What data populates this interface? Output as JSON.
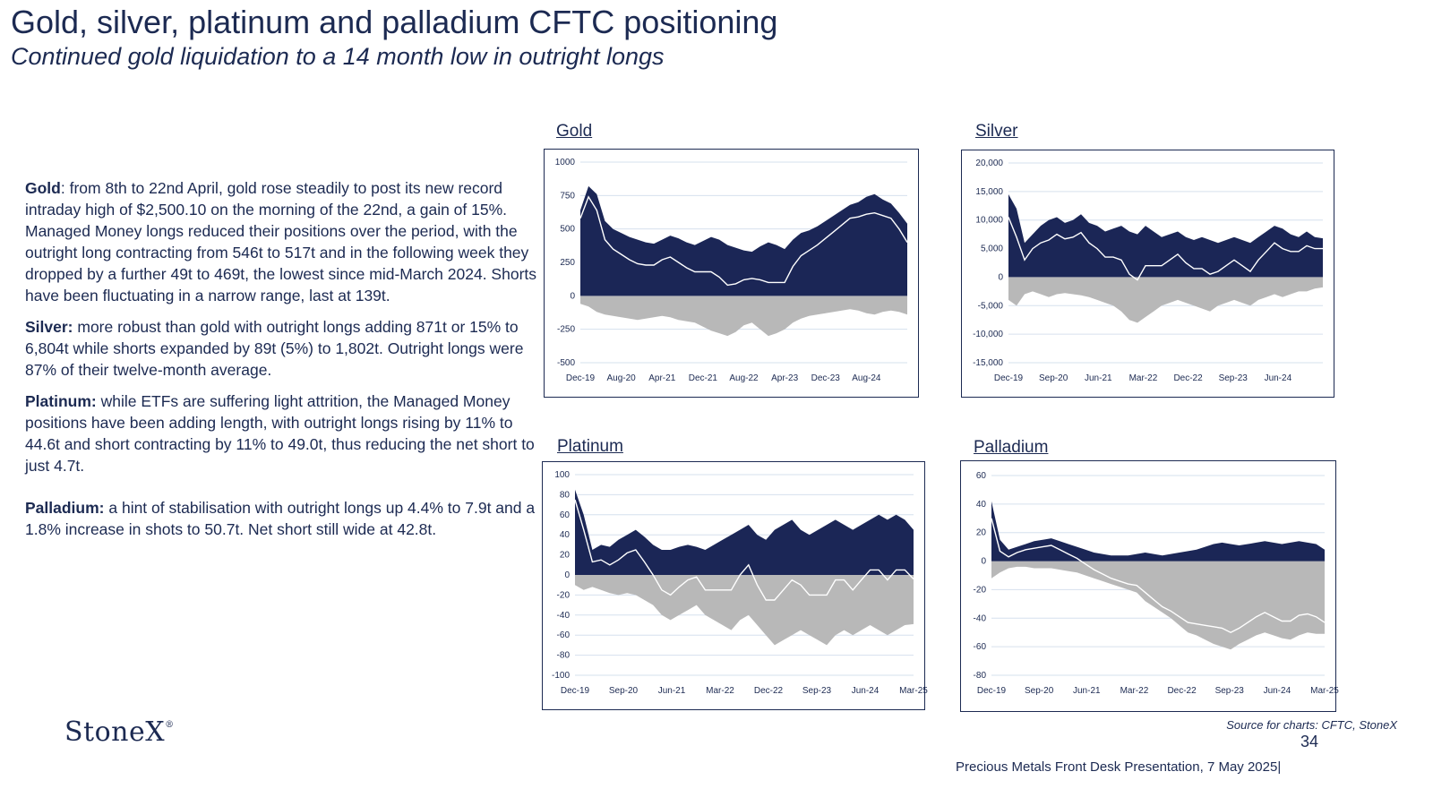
{
  "header": {
    "title": "Gold, silver, platinum and palladium CFTC positioning",
    "subtitle": "Continued gold liquidation to a 14 month low in outright longs"
  },
  "commentary": [
    {
      "label": "Gold",
      "sep": ":",
      "text": "  from 8th to 22nd April, gold rose steadily to post its new record intraday high of $2,500.10 on the morning of the 22nd, a gain of 15%.  Managed Money longs reduced their positions over the period, with the outright long contracting from 546t to 517t and in the following week they dropped by a further 49t to 469t, the lowest since mid-March 2024.  Shorts have been fluctuating in a narrow range, last at 139t."
    },
    {
      "label": "Silver:",
      "sep": "",
      "text": " more robust than gold with outright longs adding 871t or 15% to 6,804t while shorts expanded by 89t (5%) to 1,802t.  Outright longs were 87% of their twelve-month average."
    },
    {
      "label": "Platinum:",
      "sep": "",
      "text": " while ETFs are suffering light attrition, the Managed Money positions have been adding length, with outright longs rising by  11% to 44.6t and short contracting by 11% to 49.0t, thus reducing the net short to just 4.7t."
    },
    {
      "label": "Palladium:",
      "sep": "",
      "text": "  a hint of stabilisation with outright longs up 4.4% to 7.9t and a 1.8% increase in shots to 50.7t.  Net short still wide at 42.8t."
    }
  ],
  "colors": {
    "long": "#1b2656",
    "short": "#b8b8b8",
    "net": "#ffffff",
    "grid": "#d6e0ee",
    "text": "#1c2a52"
  },
  "chart_data": [
    {
      "name": "Gold",
      "type": "area",
      "yticks": [
        "1000",
        "750",
        "500",
        "250",
        "0",
        "-250",
        "-500"
      ],
      "ylim": [
        -500,
        1000
      ],
      "xticks": [
        "Dec-19",
        "Aug-20",
        "Apr-21",
        "Dec-21",
        "Aug-22",
        "Apr-23",
        "Dec-23",
        "Aug-24"
      ],
      "x_start": "Dec-19",
      "x_end": "Apr-25",
      "series": [
        {
          "name": "Long",
          "values": [
            640,
            820,
            760,
            560,
            500,
            470,
            440,
            420,
            400,
            390,
            420,
            450,
            430,
            400,
            380,
            410,
            440,
            420,
            380,
            360,
            340,
            330,
            370,
            400,
            380,
            350,
            420,
            470,
            490,
            520,
            560,
            600,
            640,
            680,
            700,
            740,
            760,
            720,
            690,
            620,
            540
          ]
        },
        {
          "name": "Short",
          "values": [
            -60,
            -80,
            -120,
            -140,
            -150,
            -160,
            -170,
            -180,
            -170,
            -160,
            -150,
            -160,
            -180,
            -190,
            -200,
            -230,
            -260,
            -280,
            -300,
            -270,
            -220,
            -200,
            -250,
            -300,
            -280,
            -250,
            -200,
            -170,
            -150,
            -140,
            -130,
            -120,
            -110,
            -100,
            -110,
            -130,
            -140,
            -120,
            -110,
            -120,
            -140
          ]
        },
        {
          "name": "Net",
          "values": [
            580,
            740,
            640,
            420,
            350,
            310,
            270,
            240,
            230,
            230,
            270,
            290,
            250,
            210,
            180,
            180,
            180,
            140,
            80,
            90,
            120,
            130,
            120,
            100,
            100,
            100,
            220,
            300,
            340,
            380,
            430,
            480,
            530,
            580,
            590,
            610,
            620,
            600,
            580,
            500,
            400
          ]
        }
      ]
    },
    {
      "name": "Silver",
      "type": "area",
      "yticks": [
        "20,000",
        "15,000",
        "10,000",
        "5,000",
        "0",
        "-5,000",
        "-10,000",
        "-15,000"
      ],
      "ylim": [
        -15000,
        20000
      ],
      "xticks": [
        "Dec-19",
        "Sep-20",
        "Jun-21",
        "Mar-22",
        "Dec-22",
        "Sep-23",
        "Jun-24"
      ],
      "x_start": "Dec-19",
      "x_end": "Mar-25",
      "series": [
        {
          "name": "Long",
          "values": [
            14500,
            12000,
            6000,
            7500,
            9000,
            10000,
            10500,
            9500,
            10000,
            11000,
            9500,
            9000,
            8000,
            8500,
            9000,
            8000,
            7500,
            9000,
            8000,
            7000,
            7500,
            8000,
            7000,
            6500,
            7000,
            6500,
            6000,
            6500,
            7000,
            6500,
            6000,
            7000,
            8000,
            9000,
            8500,
            7500,
            7000,
            8000,
            7000,
            6800
          ]
        },
        {
          "name": "Short",
          "values": [
            -4000,
            -5000,
            -3000,
            -2500,
            -3000,
            -3500,
            -3000,
            -2800,
            -3000,
            -3200,
            -3500,
            -4000,
            -4500,
            -5000,
            -6000,
            -7500,
            -8000,
            -7000,
            -6000,
            -5000,
            -4500,
            -4000,
            -4500,
            -5000,
            -5500,
            -6000,
            -5000,
            -4500,
            -4000,
            -4500,
            -5000,
            -4000,
            -3500,
            -3000,
            -3500,
            -3000,
            -2500,
            -2500,
            -2000,
            -1800
          ]
        },
        {
          "name": "Net",
          "values": [
            10500,
            7000,
            3000,
            5000,
            6000,
            6500,
            7500,
            6700,
            7000,
            7800,
            6000,
            5000,
            3500,
            3500,
            3000,
            500,
            -500,
            2000,
            2000,
            2000,
            3000,
            4000,
            2500,
            1500,
            1500,
            500,
            1000,
            2000,
            3000,
            2000,
            1000,
            3000,
            4500,
            6000,
            5000,
            4500,
            4500,
            5500,
            5000,
            5000
          ]
        }
      ]
    },
    {
      "name": "Platinum",
      "type": "area",
      "yticks": [
        "100",
        "80",
        "60",
        "40",
        "20",
        "0",
        "-20",
        "-40",
        "-60",
        "-80",
        "-100"
      ],
      "ylim": [
        -100,
        100
      ],
      "xticks": [
        "Dec-19",
        "Sep-20",
        "Jun-21",
        "Mar-22",
        "Dec-22",
        "Sep-23",
        "Jun-24",
        "Mar-25"
      ],
      "x_start": "Dec-19",
      "x_end": "Mar-25",
      "series": [
        {
          "name": "Long",
          "values": [
            85,
            60,
            25,
            30,
            28,
            35,
            40,
            45,
            38,
            30,
            25,
            25,
            28,
            30,
            28,
            25,
            30,
            35,
            40,
            45,
            50,
            40,
            35,
            45,
            50,
            55,
            45,
            40,
            45,
            50,
            55,
            50,
            45,
            50,
            55,
            60,
            55,
            60,
            55,
            45
          ]
        },
        {
          "name": "Short",
          "values": [
            -10,
            -15,
            -12,
            -15,
            -18,
            -20,
            -18,
            -20,
            -25,
            -30,
            -40,
            -45,
            -40,
            -35,
            -30,
            -40,
            -45,
            -50,
            -55,
            -45,
            -40,
            -50,
            -60,
            -70,
            -65,
            -60,
            -55,
            -60,
            -65,
            -70,
            -60,
            -55,
            -60,
            -55,
            -50,
            -55,
            -60,
            -55,
            -50,
            -49
          ]
        },
        {
          "name": "Net",
          "values": [
            75,
            45,
            13,
            15,
            10,
            15,
            22,
            25,
            13,
            0,
            -15,
            -20,
            -12,
            -5,
            -2,
            -15,
            -15,
            -15,
            -15,
            0,
            10,
            -10,
            -25,
            -25,
            -15,
            -5,
            -10,
            -20,
            -20,
            -20,
            -5,
            -5,
            -15,
            -5,
            5,
            5,
            -5,
            5,
            5,
            -4
          ]
        }
      ]
    },
    {
      "name": "Palladium",
      "type": "area",
      "yticks": [
        "60",
        "40",
        "20",
        "0",
        "-20",
        "-40",
        "-60",
        "-80"
      ],
      "ylim": [
        -80,
        60
      ],
      "xticks": [
        "Dec-19",
        "Sep-20",
        "Jun-21",
        "Mar-22",
        "Dec-22",
        "Sep-23",
        "Jun-24",
        "Mar-25"
      ],
      "x_start": "Dec-19",
      "x_end": "Mar-25",
      "series": [
        {
          "name": "Long",
          "values": [
            42,
            15,
            8,
            10,
            12,
            14,
            15,
            16,
            14,
            12,
            10,
            8,
            6,
            5,
            4,
            4,
            4,
            5,
            6,
            5,
            4,
            5,
            6,
            7,
            8,
            10,
            12,
            13,
            12,
            11,
            12,
            13,
            14,
            13,
            12,
            13,
            14,
            13,
            12,
            8
          ]
        },
        {
          "name": "Short",
          "values": [
            -12,
            -8,
            -5,
            -4,
            -4,
            -5,
            -5,
            -5,
            -6,
            -7,
            -8,
            -10,
            -12,
            -14,
            -16,
            -18,
            -20,
            -22,
            -28,
            -32,
            -36,
            -40,
            -45,
            -50,
            -52,
            -55,
            -58,
            -60,
            -62,
            -58,
            -55,
            -52,
            -50,
            -52,
            -54,
            -55,
            -52,
            -50,
            -51,
            -51
          ]
        },
        {
          "name": "Net",
          "values": [
            30,
            7,
            3,
            6,
            8,
            9,
            10,
            11,
            8,
            5,
            2,
            -2,
            -6,
            -9,
            -12,
            -14,
            -16,
            -17,
            -22,
            -27,
            -32,
            -35,
            -39,
            -43,
            -44,
            -45,
            -46,
            -47,
            -50,
            -47,
            -43,
            -39,
            -36,
            -39,
            -42,
            -42,
            -38,
            -37,
            -39,
            -43
          ]
        }
      ]
    }
  ],
  "footer": {
    "logo": "StoneX",
    "logo_mark": "®",
    "source": "Source for charts: CFTC, StoneX",
    "page_number": "34",
    "presentation": "Precious Metals Front Desk Presentation, 7 May 2025|"
  }
}
